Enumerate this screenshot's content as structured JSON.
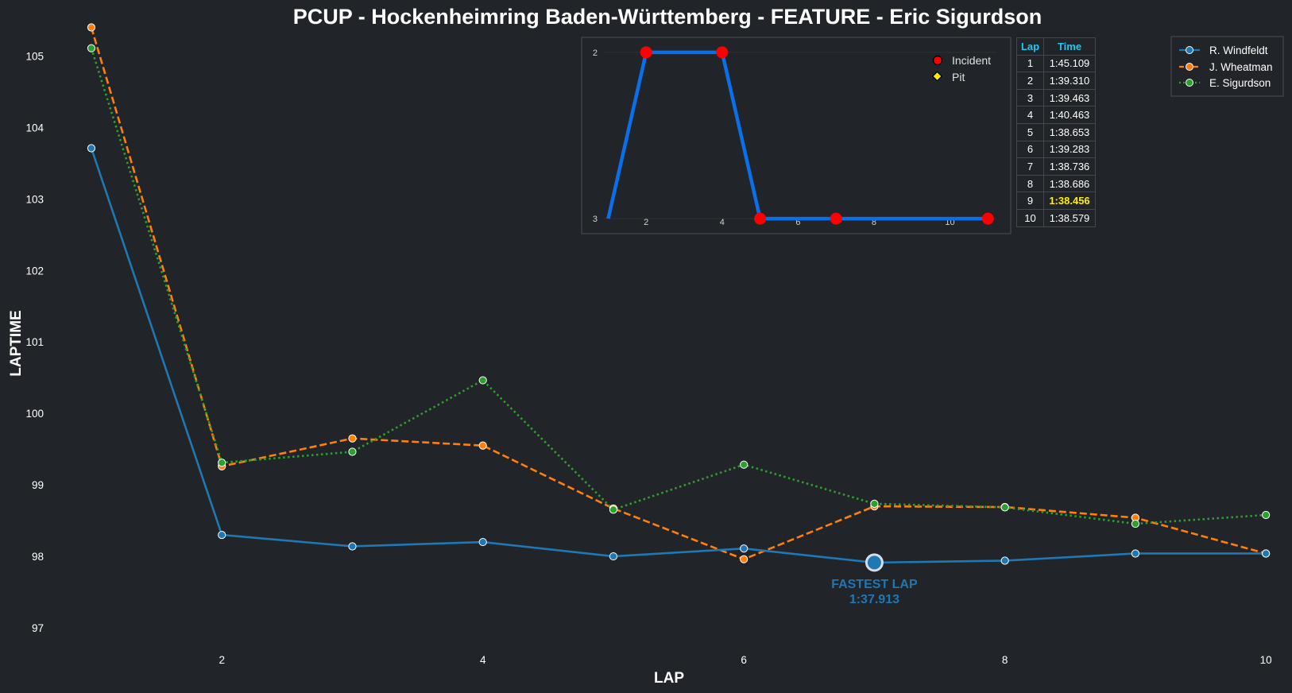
{
  "colors": {
    "background": "#212428",
    "windfeldt": "#1f77b4",
    "wheatman": "#ff7f0e",
    "sigurdson": "#2ca02c",
    "inset_line": "#0a6fe8",
    "incident": "#ff0000",
    "pit": "#ffee00",
    "table_header": "#1ec8f0",
    "table_best": "#ffee00"
  },
  "chart_data": [
    {
      "type": "line",
      "title": "PCUP - Hockenheimring Baden-Württemberg - FEATURE - Eric Sigurdson",
      "xlabel": "LAP",
      "ylabel": "LAPTIME",
      "x": [
        1,
        2,
        3,
        4,
        5,
        6,
        7,
        8,
        9,
        10
      ],
      "xticks": [
        2,
        4,
        6,
        8,
        10
      ],
      "yticks": [
        97,
        98,
        99,
        100,
        101,
        102,
        103,
        104,
        105
      ],
      "xlim": [
        0.3,
        10.2
      ],
      "ylim": [
        96.8,
        105.45
      ],
      "grid": false,
      "legend_position": "top-right",
      "series": [
        {
          "name": "R. Windfeldt",
          "style": "solid",
          "values": [
            103.71,
            98.3,
            98.14,
            98.2,
            98.0,
            98.11,
            97.913,
            97.94,
            98.04,
            98.04
          ]
        },
        {
          "name": "J. Wheatman",
          "style": "dashed",
          "values": [
            105.4,
            99.26,
            99.65,
            99.55,
            98.67,
            97.96,
            98.7,
            98.69,
            98.54,
            98.04
          ]
        },
        {
          "name": "E. Sigurdson",
          "style": "dotted",
          "values": [
            105.109,
            99.31,
            99.463,
            100.463,
            98.653,
            99.283,
            98.736,
            98.686,
            98.456,
            98.579
          ]
        }
      ],
      "annotation": {
        "x": 7,
        "y": 97.913,
        "line1": "FASTEST LAP",
        "line2": "1:37.913"
      }
    },
    {
      "type": "line",
      "title": "",
      "x": [
        1,
        2,
        4,
        5,
        7,
        11
      ],
      "values": [
        3,
        2,
        2,
        3,
        3,
        3
      ],
      "xticks": [
        2,
        4,
        6,
        8,
        10
      ],
      "yticks": [
        2,
        3
      ],
      "xlim": [
        0.3,
        11.6
      ],
      "ylim": [
        3.09,
        1.91
      ],
      "y_inverted": true,
      "incidents": [
        {
          "x": 2,
          "y": 2
        },
        {
          "x": 4,
          "y": 2
        },
        {
          "x": 5,
          "y": 3
        },
        {
          "x": 7,
          "y": 3
        },
        {
          "x": 11,
          "y": 3
        }
      ],
      "pits": [],
      "legend_position": "top-right",
      "legend": [
        "Incident",
        "Pit"
      ]
    }
  ],
  "lap_table": {
    "headers": [
      "Lap",
      "Time"
    ],
    "best_index": 8,
    "rows": [
      {
        "lap": "1",
        "time": "1:45.109"
      },
      {
        "lap": "2",
        "time": "1:39.310"
      },
      {
        "lap": "3",
        "time": "1:39.463"
      },
      {
        "lap": "4",
        "time": "1:40.463"
      },
      {
        "lap": "5",
        "time": "1:38.653"
      },
      {
        "lap": "6",
        "time": "1:39.283"
      },
      {
        "lap": "7",
        "time": "1:38.736"
      },
      {
        "lap": "8",
        "time": "1:38.686"
      },
      {
        "lap": "9",
        "time": "1:38.456"
      },
      {
        "lap": "10",
        "time": "1:38.579"
      }
    ]
  }
}
